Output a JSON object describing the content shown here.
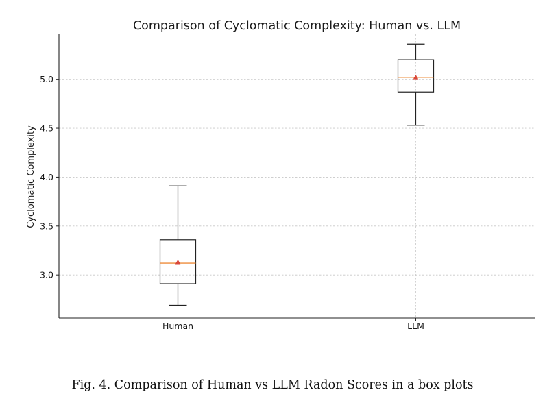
{
  "chart_data": {
    "type": "box",
    "title": "Comparison of Cyclomatic Complexity: Human vs. LLM",
    "xlabel": "",
    "ylabel": "Cyclomatic Complexity",
    "ylim": [
      2.56,
      5.46
    ],
    "yticks": [
      3.0,
      3.5,
      4.0,
      4.5,
      5.0
    ],
    "ytick_labels": [
      "3.0",
      "3.5",
      "4.0",
      "4.5",
      "5.0"
    ],
    "grid": true,
    "categories": [
      "Human",
      "LLM"
    ],
    "boxes": [
      {
        "name": "Human",
        "whisker_low": 2.69,
        "q1": 2.91,
        "median": 3.12,
        "q3": 3.36,
        "whisker_high": 3.91,
        "mean": 3.13
      },
      {
        "name": "LLM",
        "whisker_low": 4.53,
        "q1": 4.87,
        "median": 5.02,
        "q3": 5.2,
        "whisker_high": 5.36,
        "mean": 5.02
      }
    ]
  },
  "caption": "Fig. 4.  Comparison of Human vs LLM Radon Scores in a box plots",
  "colors": {
    "median": "#ee8c3b",
    "mean_marker": "#d9483b",
    "box_edge": "#222222",
    "grid": "#c8c8c8",
    "axis": "#222222"
  }
}
